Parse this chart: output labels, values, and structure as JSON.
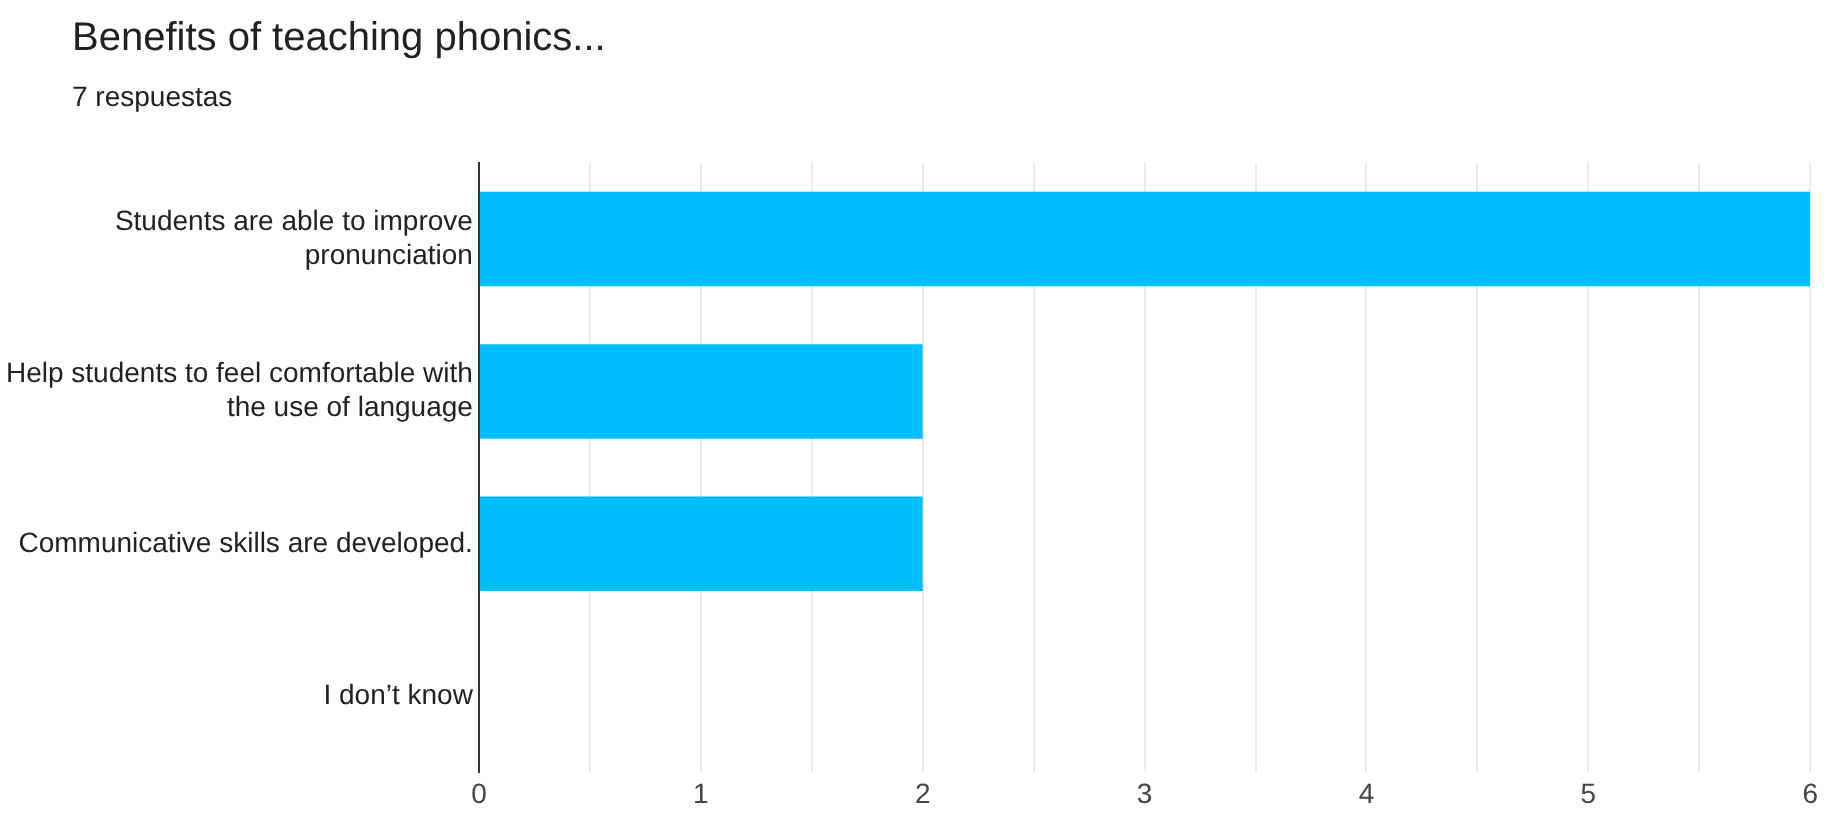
{
  "chart_data": {
    "type": "bar",
    "orientation": "horizontal",
    "title": "Benefits of teaching phonics...",
    "subtitle": "7 respuestas",
    "categories": [
      "Students are able to improve pronunciation",
      "Help students to feel comfortable with the use of language",
      "Communicative skills are developed.",
      "I don’t know"
    ],
    "values": [
      6,
      2,
      2,
      0
    ],
    "color": "#00bfff",
    "xlim": [
      0,
      6
    ],
    "xticks": [
      0,
      {
        "value": 0.5,
        "label": null
      },
      1,
      {
        "value": 1.5,
        "label": null
      },
      2,
      {
        "value": 2.5,
        "label": null
      },
      3,
      {
        "value": 3.5,
        "label": null
      },
      4,
      {
        "value": 4.5,
        "label": null
      },
      5,
      {
        "value": 5.5,
        "label": null
      },
      6
    ],
    "grid": "x",
    "legend": false
  }
}
